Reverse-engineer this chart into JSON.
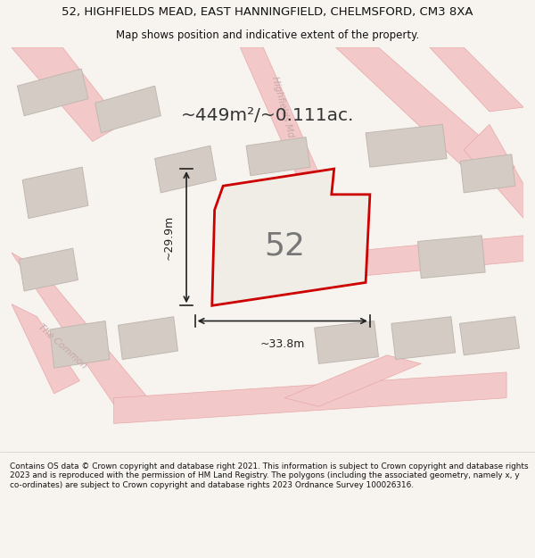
{
  "title_line1": "52, HIGHFIELDS MEAD, EAST HANNINGFIELD, CHELMSFORD, CM3 8XA",
  "title_line2": "Map shows position and indicative extent of the property.",
  "area_text": "~449m²/~0.111ac.",
  "property_number": "52",
  "dim_width": "~33.8m",
  "dim_height": "~29.9m",
  "footer_text": "Contains OS data © Crown copyright and database right 2021. This information is subject to Crown copyright and database rights 2023 and is reproduced with the permission of HM Land Registry. The polygons (including the associated geometry, namely x, y co-ordinates) are subject to Crown copyright and database rights 2023 Ordnance Survey 100026316.",
  "bg_color": "#f7f4f0",
  "map_bg": "#f0ece6",
  "road_color": "#f2c8c8",
  "road_outline": "#e8a8a8",
  "property_fill": "#f0ece6",
  "property_edge": "#cc0000",
  "building_fill": "#d4ccc4",
  "building_edge": "#c0b8b0",
  "dim_line_color": "#222222",
  "title_color": "#111111",
  "footer_color": "#111111",
  "road_label_color": "#c8a8a8",
  "property_label_color": "#888888",
  "label_road1": "Highfields Md",
  "label_road2": "The Common"
}
